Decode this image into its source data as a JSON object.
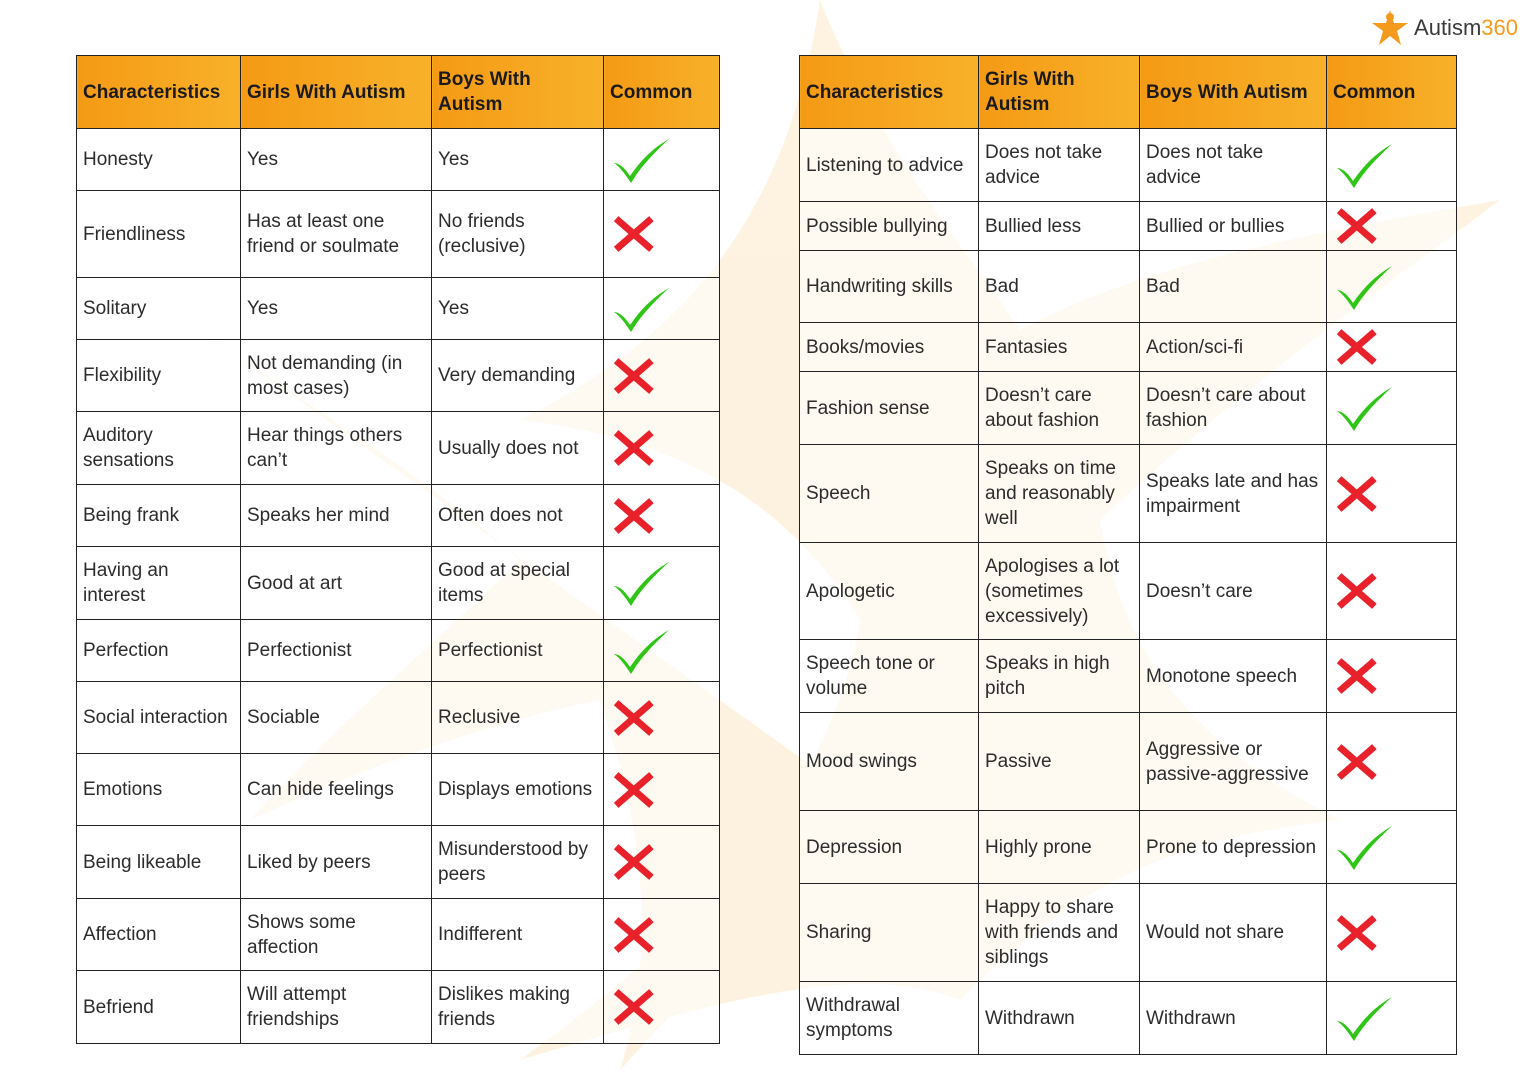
{
  "brand": {
    "name_main": "Autism",
    "name_accent": "360",
    "icon": "star-logo-icon"
  },
  "colors": {
    "header": "#f7a21c",
    "check": "#2ec516",
    "cross": "#e8212b",
    "accent": "#f49a1d"
  },
  "left_table": {
    "headers": [
      "Characteristics",
      "Girls With Autism",
      "Boys With Autism",
      "Common"
    ],
    "rows": [
      {
        "c": "Honesty",
        "g": "Yes",
        "b": "Yes",
        "common": true
      },
      {
        "c": "Friendliness",
        "g": "Has at least one friend or soulmate",
        "b": "No friends (reclusive)",
        "common": false
      },
      {
        "c": "Solitary",
        "g": "Yes",
        "b": "Yes",
        "common": true
      },
      {
        "c": "Flexibility",
        "g": "Not demanding (in most cases)",
        "b": "Very demanding",
        "common": false
      },
      {
        "c": "Auditory sensations",
        "g": "Hear things others can’t",
        "b": "Usually does  not",
        "common": false
      },
      {
        "c": "Being frank",
        "g": "Speaks her mind",
        "b": "Often does not",
        "common": false
      },
      {
        "c": "Having an interest",
        "g": "Good at art",
        "b": "Good at special items",
        "common": true
      },
      {
        "c": "Perfection",
        "g": "Perfectionist",
        "b": "Perfectionist",
        "common": true
      },
      {
        "c": "Social interaction",
        "g": "Sociable",
        "b": "Reclusive",
        "common": false
      },
      {
        "c": "Emotions",
        "g": "Can hide feelings",
        "b": "Displays emotions",
        "common": false
      },
      {
        "c": "Being likeable",
        "g": "Liked by peers",
        "b": "Misunderstood by peers",
        "common": false
      },
      {
        "c": "Affection",
        "g": "Shows some affection",
        "b": "Indifferent",
        "common": false
      },
      {
        "c": "Befriend",
        "g": "Will attempt friendships",
        "b": "Dislikes making friends",
        "common": false
      }
    ]
  },
  "right_table": {
    "headers": [
      "Characteristics",
      "Girls With Autism",
      "Boys With Autism",
      "Common"
    ],
    "rows": [
      {
        "c": "Listening to advice",
        "g": "Does not take advice",
        "b": "Does not take advice",
        "common": true
      },
      {
        "c": "Possible bullying",
        "g": "Bullied less",
        "b": "Bullied or bullies",
        "common": false
      },
      {
        "c": "Handwriting skills",
        "g": "Bad",
        "b": "Bad",
        "common": true
      },
      {
        "c": "Books/movies",
        "g": "Fantasies",
        "b": "Action/sci-fi",
        "common": false
      },
      {
        "c": "Fashion sense",
        "g": "Doesn’t care about fashion",
        "b": "Doesn’t care about fashion",
        "common": true
      },
      {
        "c": "Speech",
        "g": "Speaks on time and reasonably well",
        "b": "Speaks late and has impairment",
        "common": false
      },
      {
        "c": "Apologetic",
        "g": "Apologises a lot (sometimes excessively)",
        "b": "Doesn’t care",
        "common": false
      },
      {
        "c": "Speech tone or volume",
        "g": "Speaks in high pitch",
        "b": "Monotone speech",
        "common": false
      },
      {
        "c": "Mood swings",
        "g": "Passive",
        "b": "Aggressive or passive-aggressive",
        "common": false
      },
      {
        "c": "Depression",
        "g": "Highly prone",
        "b": "Prone to depression",
        "common": true
      },
      {
        "c": "Sharing",
        "g": "Happy to share with friends and siblings",
        "b": "Would not share",
        "common": false
      },
      {
        "c": "Withdrawal symptoms",
        "g": "Withdrawn",
        "b": "Withdrawn",
        "common": true
      }
    ]
  }
}
